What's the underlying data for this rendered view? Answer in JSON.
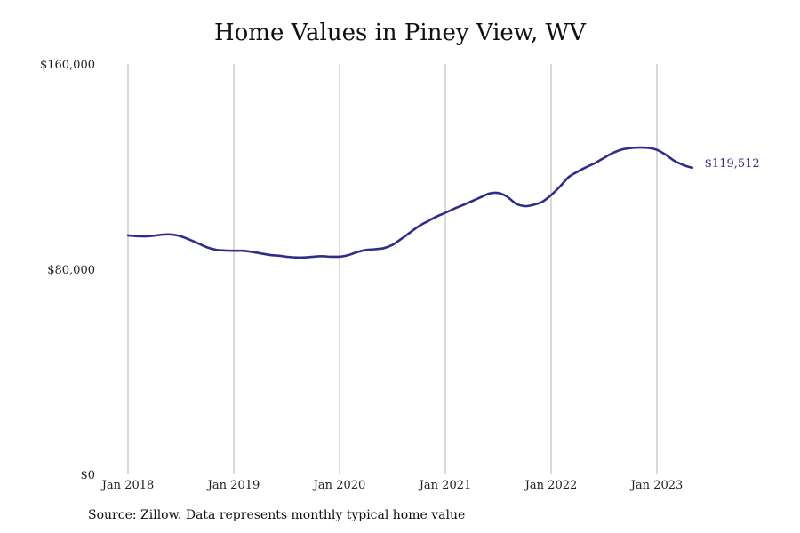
{
  "chart_data": {
    "type": "line",
    "title": "Home Values in Piney View, WV",
    "xlabel": "",
    "ylabel": "",
    "ylim": [
      0,
      160000
    ],
    "y_ticks": [
      {
        "value": 0,
        "label": "$0"
      },
      {
        "value": 80000,
        "label": "$80,000"
      },
      {
        "value": 160000,
        "label": "$160,000"
      }
    ],
    "x_ticks": [
      "Jan 2018",
      "Jan 2019",
      "Jan 2020",
      "Jan 2021",
      "Jan 2022",
      "Jan 2023"
    ],
    "vertical_grid": true,
    "line_color": "#2e2d8c",
    "end_label": "$119,512",
    "series": [
      {
        "x": [
          "2018-01",
          "2018-02",
          "2018-03",
          "2018-04",
          "2018-05",
          "2018-06",
          "2018-07",
          "2018-08",
          "2018-09",
          "2018-10",
          "2018-11",
          "2018-12",
          "2019-01",
          "2019-02",
          "2019-03",
          "2019-04",
          "2019-05",
          "2019-06",
          "2019-07",
          "2019-08",
          "2019-09",
          "2019-10",
          "2019-11",
          "2019-12",
          "2020-01",
          "2020-02",
          "2020-03",
          "2020-04",
          "2020-05",
          "2020-06",
          "2020-07",
          "2020-08",
          "2020-09",
          "2020-10",
          "2020-11",
          "2020-12",
          "2021-01",
          "2021-02",
          "2021-03",
          "2021-04",
          "2021-05",
          "2021-06",
          "2021-07",
          "2021-08",
          "2021-09",
          "2021-10",
          "2021-11",
          "2021-12",
          "2022-01",
          "2022-02",
          "2022-03",
          "2022-04",
          "2022-05",
          "2022-06",
          "2022-07",
          "2022-08",
          "2022-09",
          "2022-10",
          "2022-11",
          "2022-12",
          "2023-01",
          "2023-02",
          "2023-03",
          "2023-04",
          "2023-05"
        ],
        "values": [
          93200,
          92900,
          92800,
          93100,
          93500,
          93500,
          92800,
          91500,
          90000,
          88500,
          87600,
          87300,
          87200,
          87200,
          86800,
          86200,
          85600,
          85300,
          84900,
          84600,
          84600,
          84900,
          85100,
          84900,
          84900,
          85500,
          86700,
          87500,
          87800,
          88200,
          89500,
          91800,
          94300,
          96800,
          98700,
          100500,
          102000,
          103600,
          105000,
          106500,
          108000,
          109500,
          109700,
          108300,
          105600,
          104600,
          105100,
          106300,
          108900,
          112200,
          115900,
          118000,
          119800,
          121400,
          123400,
          125300,
          126600,
          127200,
          127400,
          127300,
          126500,
          124600,
          122200,
          120600,
          119512
        ]
      }
    ]
  },
  "source_note": "Source: Zillow. Data represents monthly typical home value"
}
